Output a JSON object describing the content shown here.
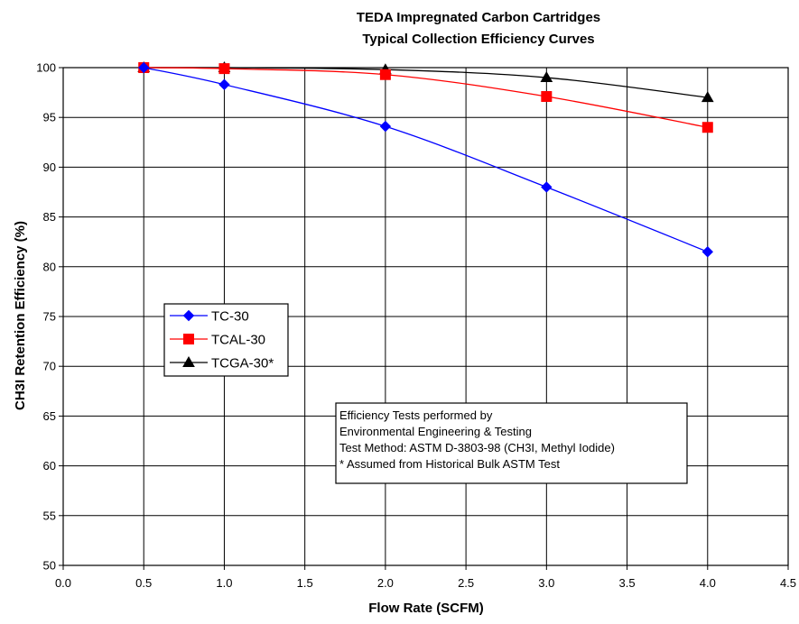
{
  "chart_data": {
    "type": "line",
    "title_lines": [
      "TEDA Impregnated Carbon Cartridges",
      "Typical Collection Efficiency Curves"
    ],
    "xlabel": "Flow Rate (SCFM)",
    "ylabel": "CH3I Retention Efficiency (%)",
    "xlim": [
      0.0,
      4.5
    ],
    "ylim": [
      50,
      100
    ],
    "x_ticks": [
      "0.0",
      "0.5",
      "1.0",
      "1.5",
      "2.0",
      "2.5",
      "3.0",
      "3.5",
      "4.0",
      "4.5"
    ],
    "y_ticks": [
      "50",
      "55",
      "60",
      "65",
      "70",
      "75",
      "80",
      "85",
      "90",
      "95",
      "100"
    ],
    "grid": true,
    "legend_position": "left-middle",
    "series": [
      {
        "name": "TC-30",
        "color": "#0000FF",
        "marker": "diamond",
        "x": [
          0.5,
          1.0,
          2.0,
          3.0,
          4.0
        ],
        "y": [
          100,
          98.3,
          94.1,
          88.0,
          81.5
        ]
      },
      {
        "name": "TCAL-30",
        "color": "#FF0000",
        "marker": "square",
        "x": [
          0.5,
          1.0,
          2.0,
          3.0,
          4.0
        ],
        "y": [
          100,
          99.9,
          99.3,
          97.1,
          94.0
        ]
      },
      {
        "name": "TCGA-30*",
        "color": "#000000",
        "marker": "triangle",
        "x": [
          0.5,
          1.0,
          2.0,
          3.0,
          4.0
        ],
        "y": [
          100,
          100,
          99.8,
          99.0,
          97.0
        ]
      }
    ],
    "annotation_lines": [
      "Efficiency Tests performed by",
      "Environmental Engineering & Testing",
      "Test Method: ASTM D-3803-98 (CH3I, Methyl Iodide)",
      "* Assumed from Historical Bulk ASTM Test"
    ]
  }
}
